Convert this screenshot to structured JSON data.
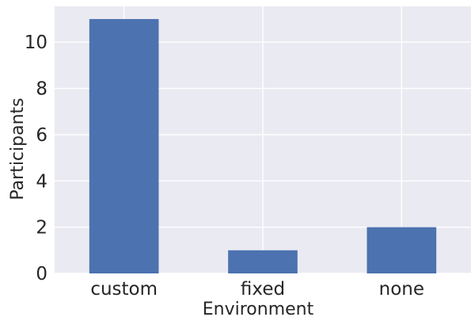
{
  "chart_data": {
    "type": "bar",
    "title": "",
    "xlabel": "Environment",
    "ylabel": "Participants",
    "categories": [
      "custom",
      "fixed",
      "none"
    ],
    "values": [
      11,
      1,
      2
    ],
    "ylim": [
      0,
      11.55
    ],
    "yticks": [
      0,
      2,
      4,
      6,
      8,
      10
    ],
    "grid": true,
    "legend": "none",
    "colors": {
      "bar": "#4C72B0",
      "plot_background": "#EAEAF2",
      "grid": "#FFFFFF",
      "text": "#262626"
    }
  }
}
